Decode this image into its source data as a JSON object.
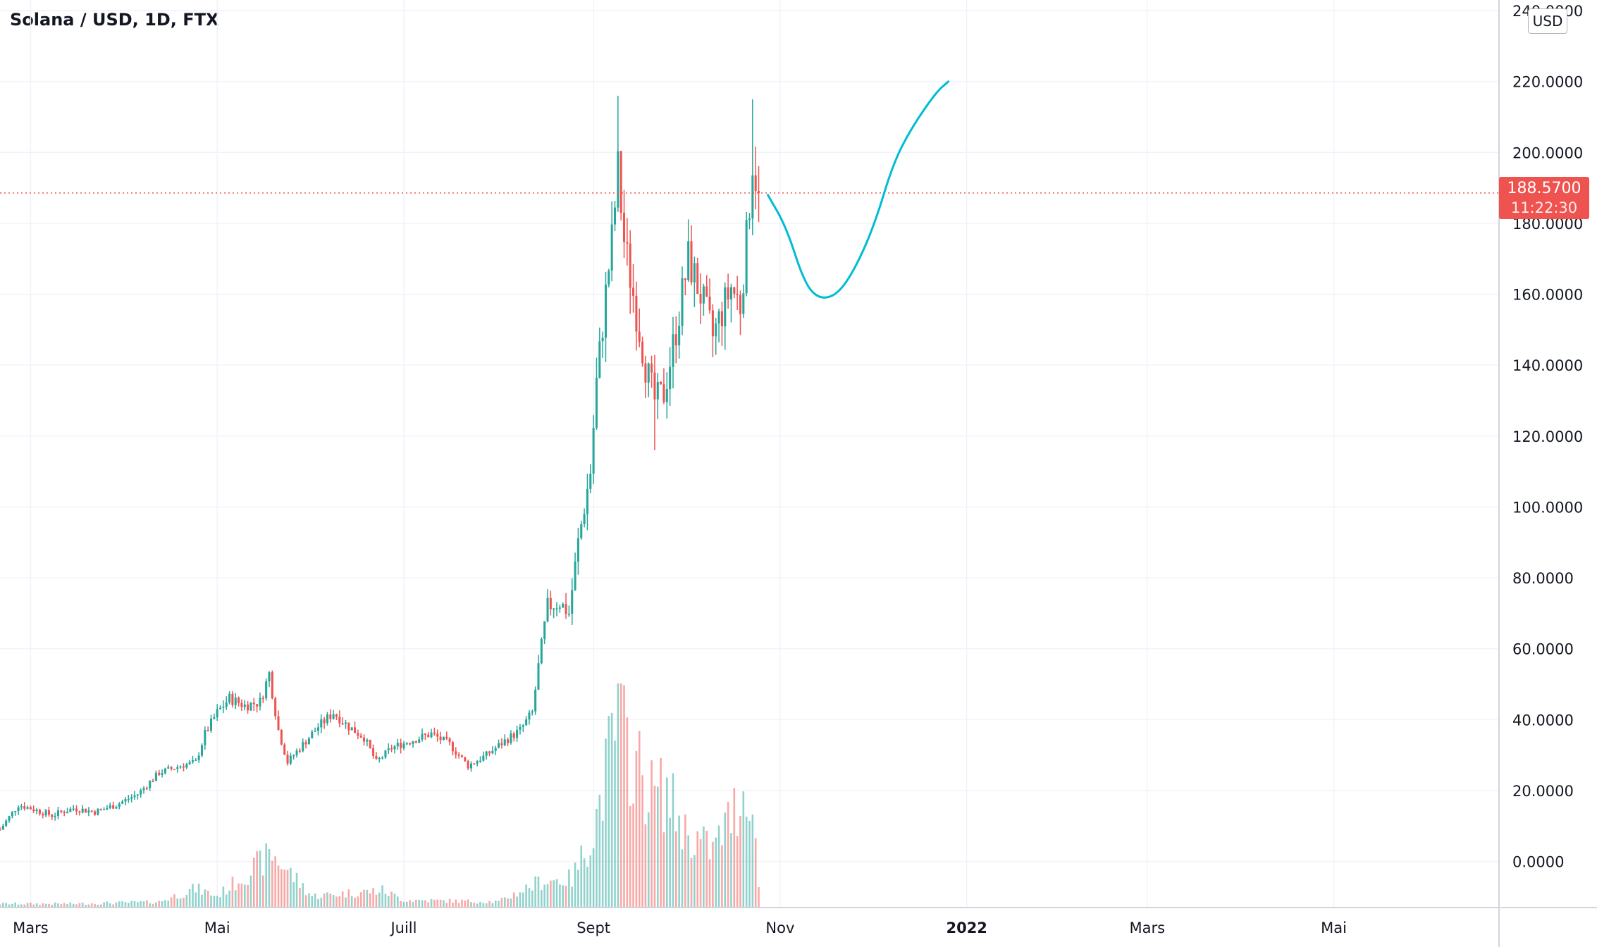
{
  "header": {
    "title": "Solana / USD, 1D, FTX"
  },
  "axis": {
    "currency_label": "USD"
  },
  "last_price": {
    "value": "188.5700",
    "countdown": "11:22:30",
    "color": "#ef5350"
  },
  "colors": {
    "up": "#26a69a",
    "down": "#ef5350",
    "drawing": "#00bcd4",
    "grid": "#f0f3fa",
    "text": "#131722"
  },
  "chart_data": {
    "type": "candlestick",
    "title": "Solana / USD, 1D, FTX",
    "y_ticks": [
      "240.0000",
      "220.0000",
      "200.0000",
      "180.0000",
      "160.0000",
      "140.0000",
      "120.0000",
      "100.0000",
      "80.0000",
      "60.0000",
      "40.0000",
      "20.0000",
      "0.0000"
    ],
    "ylim": [
      -13,
      243
    ],
    "x_ticks": [
      {
        "label": "Mars",
        "date": "2021-03-01",
        "bold": false
      },
      {
        "label": "Mai",
        "date": "2021-05-01",
        "bold": false
      },
      {
        "label": "Juill",
        "date": "2021-07-01",
        "bold": false
      },
      {
        "label": "Sept",
        "date": "2021-09-01",
        "bold": false
      },
      {
        "label": "Nov",
        "date": "2021-11-01",
        "bold": false
      },
      {
        "label": "2022",
        "date": "2022-01-01",
        "bold": true
      },
      {
        "label": "Mars",
        "date": "2022-03-01",
        "bold": false
      },
      {
        "label": "Mai",
        "date": "2022-05-01",
        "bold": false
      }
    ],
    "xlim": [
      "2021-02-19",
      "2022-06-24"
    ],
    "grid": true,
    "last_price_line": 188.57,
    "close_path": [
      [
        "2021-02-19",
        9
      ],
      [
        "2021-02-25",
        16
      ],
      [
        "2021-03-01",
        15
      ],
      [
        "2021-03-08",
        13
      ],
      [
        "2021-03-15",
        15
      ],
      [
        "2021-03-22",
        14
      ],
      [
        "2021-03-29",
        16
      ],
      [
        "2021-04-05",
        19
      ],
      [
        "2021-04-12",
        25
      ],
      [
        "2021-04-19",
        27
      ],
      [
        "2021-04-24",
        28
      ],
      [
        "2021-04-27",
        36
      ],
      [
        "2021-05-01",
        42
      ],
      [
        "2021-05-05",
        46
      ],
      [
        "2021-05-10",
        44
      ],
      [
        "2021-05-15",
        45
      ],
      [
        "2021-05-18",
        53
      ],
      [
        "2021-05-21",
        37
      ],
      [
        "2021-05-24",
        28
      ],
      [
        "2021-05-28",
        32
      ],
      [
        "2021-06-03",
        38
      ],
      [
        "2021-06-08",
        42
      ],
      [
        "2021-06-13",
        38
      ],
      [
        "2021-06-18",
        35
      ],
      [
        "2021-06-22",
        28
      ],
      [
        "2021-06-27",
        32
      ],
      [
        "2021-07-03",
        34
      ],
      [
        "2021-07-10",
        36
      ],
      [
        "2021-07-16",
        33
      ],
      [
        "2021-07-22",
        27
      ],
      [
        "2021-07-28",
        30
      ],
      [
        "2021-08-03",
        34
      ],
      [
        "2021-08-08",
        37
      ],
      [
        "2021-08-12",
        42
      ],
      [
        "2021-08-14",
        55
      ],
      [
        "2021-08-17",
        72
      ],
      [
        "2021-08-21",
        73
      ],
      [
        "2021-08-24",
        70
      ],
      [
        "2021-08-27",
        90
      ],
      [
        "2021-08-31",
        110
      ],
      [
        "2021-09-02",
        135
      ],
      [
        "2021-09-05",
        160
      ],
      [
        "2021-09-07",
        175
      ],
      [
        "2021-09-09",
        195
      ],
      [
        "2021-09-11",
        175
      ],
      [
        "2021-09-14",
        160
      ],
      [
        "2021-09-18",
        140
      ],
      [
        "2021-09-21",
        130
      ],
      [
        "2021-09-24",
        132
      ],
      [
        "2021-09-28",
        150
      ],
      [
        "2021-10-02",
        170
      ],
      [
        "2021-10-06",
        160
      ],
      [
        "2021-10-10",
        148
      ],
      [
        "2021-10-13",
        155
      ],
      [
        "2021-10-16",
        162
      ],
      [
        "2021-10-19",
        157
      ],
      [
        "2021-10-21",
        175
      ],
      [
        "2021-10-23",
        198
      ],
      [
        "2021-10-25",
        188.57
      ]
    ],
    "notable_highs": [
      {
        "date": "2021-09-09",
        "high": 216
      },
      {
        "date": "2021-10-23",
        "high": 215
      }
    ],
    "notable_lows": [
      {
        "date": "2021-09-21",
        "low": 116
      }
    ],
    "volume": {
      "peak_date": "2021-09-09",
      "series": [
        [
          "2021-02-19",
          2
        ],
        [
          "2021-03-15",
          2
        ],
        [
          "2021-04-12",
          3
        ],
        [
          "2021-04-24",
          10
        ],
        [
          "2021-05-01",
          6
        ],
        [
          "2021-05-19",
          28
        ],
        [
          "2021-06-01",
          6
        ],
        [
          "2021-06-24",
          9
        ],
        [
          "2021-07-01",
          4
        ],
        [
          "2021-08-01",
          3
        ],
        [
          "2021-08-15",
          14
        ],
        [
          "2021-08-25",
          15
        ],
        [
          "2021-09-01",
          40
        ],
        [
          "2021-09-09",
          100
        ],
        [
          "2021-09-12",
          84
        ],
        [
          "2021-09-20",
          60
        ],
        [
          "2021-09-25",
          60
        ],
        [
          "2021-10-01",
          40
        ],
        [
          "2021-10-10",
          30
        ],
        [
          "2021-10-22",
          66
        ],
        [
          "2021-10-25",
          13
        ]
      ]
    },
    "drawing": {
      "type": "freehand-projection",
      "points": [
        [
          "2021-10-28",
          188
        ],
        [
          "2021-11-03",
          179
        ],
        [
          "2021-11-09",
          163
        ],
        [
          "2021-11-14",
          158.5
        ],
        [
          "2021-11-20",
          160
        ],
        [
          "2021-11-26",
          168
        ],
        [
          "2021-12-02",
          180
        ],
        [
          "2021-12-08",
          197
        ],
        [
          "2021-12-14",
          207
        ],
        [
          "2021-12-22",
          217
        ],
        [
          "2021-12-26",
          220
        ]
      ]
    }
  }
}
